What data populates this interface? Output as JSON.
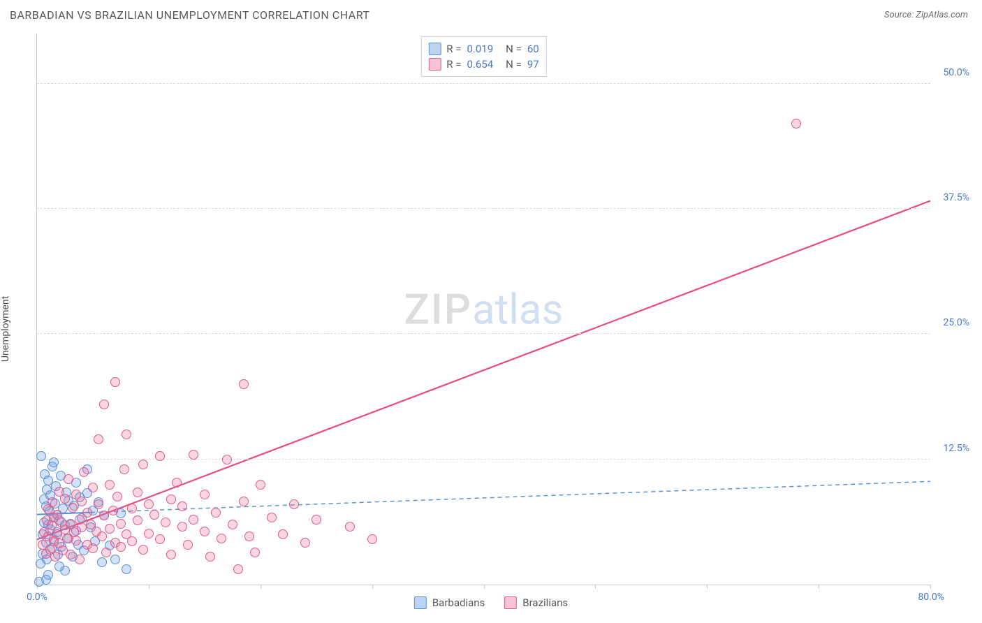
{
  "header": {
    "title": "BARBADIAN VS BRAZILIAN UNEMPLOYMENT CORRELATION CHART",
    "source": "Source: ZipAtlas.com"
  },
  "ylabel": "Unemployment",
  "watermark": {
    "part1": "ZIP",
    "part2": "atlas"
  },
  "chart": {
    "type": "scatter",
    "background_color": "#ffffff",
    "grid_color": "#dcdcdc",
    "axis_color": "#c9c9c9",
    "xlim": [
      0,
      80
    ],
    "ylim": [
      0,
      55
    ],
    "x_ticks": [
      0,
      10,
      20,
      30,
      40,
      50,
      60,
      70,
      80
    ],
    "x_tick_labels": {
      "min": "0.0%",
      "max": "80.0%"
    },
    "y_gridlines": [
      12.5,
      25.0,
      37.5,
      50.0
    ],
    "y_tick_labels": [
      "12.5%",
      "25.0%",
      "37.5%",
      "50.0%"
    ],
    "y_label_color": "#4878cc",
    "point_radius": 7,
    "point_stroke_width": 1.2,
    "series": [
      {
        "name": "Barbadians",
        "color_fill": "rgba(107,157,224,0.30)",
        "color_stroke": "#5a91d6",
        "r": 0.019,
        "n": 60,
        "trend": {
          "style": "dashed",
          "color": "#5a91d6",
          "width": 1.5,
          "x1": 0,
          "y1": 7.0,
          "x2": 80,
          "y2": 10.3
        },
        "trend_solid_until_x": 5,
        "points": [
          [
            0.2,
            0.3
          ],
          [
            0.3,
            2.1
          ],
          [
            0.4,
            12.8
          ],
          [
            0.5,
            5.0
          ],
          [
            0.5,
            3.1
          ],
          [
            0.6,
            6.2
          ],
          [
            0.6,
            8.5
          ],
          [
            0.7,
            11.0
          ],
          [
            0.8,
            4.2
          ],
          [
            0.8,
            7.8
          ],
          [
            0.9,
            9.5
          ],
          [
            0.9,
            2.5
          ],
          [
            1.0,
            6.0
          ],
          [
            1.0,
            10.4
          ],
          [
            1.1,
            7.3
          ],
          [
            1.2,
            5.5
          ],
          [
            1.2,
            8.9
          ],
          [
            1.3,
            3.6
          ],
          [
            1.4,
            11.8
          ],
          [
            1.5,
            6.7
          ],
          [
            1.5,
            4.5
          ],
          [
            1.6,
            8.1
          ],
          [
            1.7,
            9.8
          ],
          [
            1.8,
            5.2
          ],
          [
            1.8,
            7.0
          ],
          [
            1.9,
            3.0
          ],
          [
            2.0,
            6.4
          ],
          [
            2.1,
            10.9
          ],
          [
            2.2,
            3.8
          ],
          [
            2.3,
            7.6
          ],
          [
            2.5,
            5.9
          ],
          [
            2.5,
            1.4
          ],
          [
            2.6,
            9.2
          ],
          [
            2.8,
            4.6
          ],
          [
            2.8,
            8.4
          ],
          [
            3.0,
            6.1
          ],
          [
            3.2,
            2.8
          ],
          [
            3.3,
            7.9
          ],
          [
            3.5,
            5.4
          ],
          [
            3.5,
            10.2
          ],
          [
            3.7,
            4.0
          ],
          [
            3.8,
            8.7
          ],
          [
            4.0,
            6.6
          ],
          [
            4.2,
            3.4
          ],
          [
            4.5,
            9.1
          ],
          [
            4.5,
            11.5
          ],
          [
            4.8,
            5.7
          ],
          [
            5.0,
            7.4
          ],
          [
            5.2,
            4.3
          ],
          [
            5.5,
            8.2
          ],
          [
            5.8,
            2.2
          ],
          [
            6.0,
            6.9
          ],
          [
            6.5,
            3.9
          ],
          [
            7.0,
            2.5
          ],
          [
            7.5,
            7.1
          ],
          [
            8.0,
            1.5
          ],
          [
            1.0,
            1.0
          ],
          [
            2.0,
            1.8
          ],
          [
            1.5,
            12.2
          ],
          [
            0.8,
            0.5
          ]
        ]
      },
      {
        "name": "Brazilians",
        "color_fill": "rgba(235,110,150,0.28)",
        "color_stroke": "#e15a8a",
        "r": 0.654,
        "n": 97,
        "trend": {
          "style": "solid",
          "color": "#e84a86",
          "width": 2.2,
          "x1": 0,
          "y1": 4.5,
          "x2": 80,
          "y2": 38.3
        },
        "points": [
          [
            0.5,
            4.0
          ],
          [
            0.6,
            5.2
          ],
          [
            0.8,
            3.1
          ],
          [
            0.9,
            6.4
          ],
          [
            1.0,
            4.8
          ],
          [
            1.0,
            7.5
          ],
          [
            1.2,
            3.5
          ],
          [
            1.3,
            5.9
          ],
          [
            1.4,
            8.2
          ],
          [
            1.5,
            4.3
          ],
          [
            1.5,
            6.7
          ],
          [
            1.6,
            2.8
          ],
          [
            1.8,
            7.0
          ],
          [
            1.8,
            5.0
          ],
          [
            2.0,
            9.3
          ],
          [
            2.0,
            4.1
          ],
          [
            2.2,
            6.2
          ],
          [
            2.3,
            3.4
          ],
          [
            2.5,
            8.6
          ],
          [
            2.5,
            5.5
          ],
          [
            2.7,
            4.6
          ],
          [
            2.8,
            10.5
          ],
          [
            3.0,
            6.0
          ],
          [
            3.0,
            3.0
          ],
          [
            3.2,
            7.7
          ],
          [
            3.3,
            5.2
          ],
          [
            3.5,
            9.0
          ],
          [
            3.5,
            4.4
          ],
          [
            3.8,
            6.5
          ],
          [
            3.8,
            2.5
          ],
          [
            4.0,
            8.3
          ],
          [
            4.0,
            5.7
          ],
          [
            4.2,
            11.2
          ],
          [
            4.5,
            4.0
          ],
          [
            4.5,
            7.2
          ],
          [
            4.8,
            6.0
          ],
          [
            5.0,
            3.6
          ],
          [
            5.0,
            9.7
          ],
          [
            5.3,
            5.3
          ],
          [
            5.5,
            8.0
          ],
          [
            5.5,
            14.5
          ],
          [
            5.8,
            4.8
          ],
          [
            6.0,
            6.9
          ],
          [
            6.0,
            18.0
          ],
          [
            6.2,
            3.2
          ],
          [
            6.5,
            10.0
          ],
          [
            6.5,
            5.6
          ],
          [
            6.8,
            7.4
          ],
          [
            7.0,
            4.2
          ],
          [
            7.0,
            20.2
          ],
          [
            7.2,
            8.8
          ],
          [
            7.5,
            6.1
          ],
          [
            7.5,
            3.8
          ],
          [
            7.8,
            11.5
          ],
          [
            8.0,
            5.0
          ],
          [
            8.0,
            15.0
          ],
          [
            8.5,
            7.6
          ],
          [
            8.5,
            4.3
          ],
          [
            9.0,
            9.2
          ],
          [
            9.0,
            6.4
          ],
          [
            9.5,
            3.5
          ],
          [
            9.5,
            12.0
          ],
          [
            10.0,
            8.0
          ],
          [
            10.0,
            5.1
          ],
          [
            10.5,
            7.0
          ],
          [
            11.0,
            4.5
          ],
          [
            11.0,
            12.8
          ],
          [
            11.5,
            6.2
          ],
          [
            12.0,
            8.5
          ],
          [
            12.0,
            3.0
          ],
          [
            12.5,
            10.2
          ],
          [
            13.0,
            5.8
          ],
          [
            13.0,
            7.8
          ],
          [
            13.5,
            4.0
          ],
          [
            14.0,
            13.0
          ],
          [
            14.0,
            6.5
          ],
          [
            15.0,
            9.0
          ],
          [
            15.0,
            5.3
          ],
          [
            15.5,
            2.8
          ],
          [
            16.0,
            7.2
          ],
          [
            16.5,
            4.6
          ],
          [
            17.0,
            12.5
          ],
          [
            17.5,
            6.0
          ],
          [
            18.5,
            8.3
          ],
          [
            18.5,
            20.0
          ],
          [
            18.0,
            1.5
          ],
          [
            19.0,
            4.8
          ],
          [
            19.5,
            3.2
          ],
          [
            20.0,
            10.0
          ],
          [
            21.0,
            6.7
          ],
          [
            22.0,
            5.0
          ],
          [
            23.0,
            8.0
          ],
          [
            24.0,
            4.2
          ],
          [
            25.0,
            6.5
          ],
          [
            28.0,
            5.8
          ],
          [
            30.0,
            4.5
          ],
          [
            68.0,
            46.0
          ]
        ]
      }
    ]
  },
  "legend_top": {
    "border_color": "#d0d0d0",
    "rows": [
      {
        "swatch_fill": "rgba(107,157,224,0.45)",
        "swatch_stroke": "#5a91d6",
        "r_label": "R  =",
        "r": "0.019",
        "n_label": "N  =",
        "n": "60"
      },
      {
        "swatch_fill": "rgba(235,110,150,0.40)",
        "swatch_stroke": "#e15a8a",
        "r_label": "R  =",
        "r": "0.654",
        "n_label": "N  =",
        "n": "97"
      }
    ]
  },
  "legend_bottom": {
    "items": [
      {
        "swatch_fill": "rgba(107,157,224,0.45)",
        "swatch_stroke": "#5a91d6",
        "label": "Barbadians"
      },
      {
        "swatch_fill": "rgba(235,110,150,0.40)",
        "swatch_stroke": "#e15a8a",
        "label": "Brazilians"
      }
    ]
  }
}
